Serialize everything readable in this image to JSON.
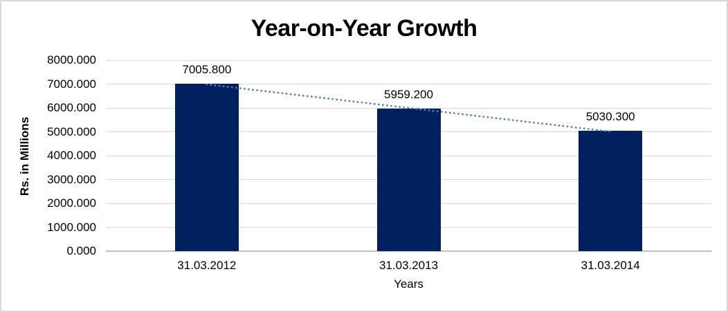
{
  "chart_data": {
    "type": "bar",
    "title": "Year-on-Year Growth",
    "xlabel": "Years",
    "ylabel": "Rs. in Millions",
    "categories": [
      "31.03.2012",
      "31.03.2013",
      "31.03.2014"
    ],
    "values": [
      7005.8,
      5959.2,
      5030.3
    ],
    "value_labels": [
      "7005.800",
      "5959.200",
      "5030.300"
    ],
    "ylim": [
      0,
      8000
    ],
    "ytick_step": 1000,
    "ytick_labels": [
      "0.000",
      "1000.000",
      "2000.000",
      "3000.000",
      "4000.000",
      "5000.000",
      "6000.000",
      "7000.000",
      "8000.000"
    ],
    "grid": "horizontal",
    "legend": "none",
    "bar_color": "#002060",
    "gridline_color": "#d9d9d9",
    "axis_line_color": "#bfbfbf",
    "frame_color": "#d9d9d9",
    "trendline": {
      "type": "linear",
      "style": "dotted",
      "color": "#4d81c4"
    }
  }
}
